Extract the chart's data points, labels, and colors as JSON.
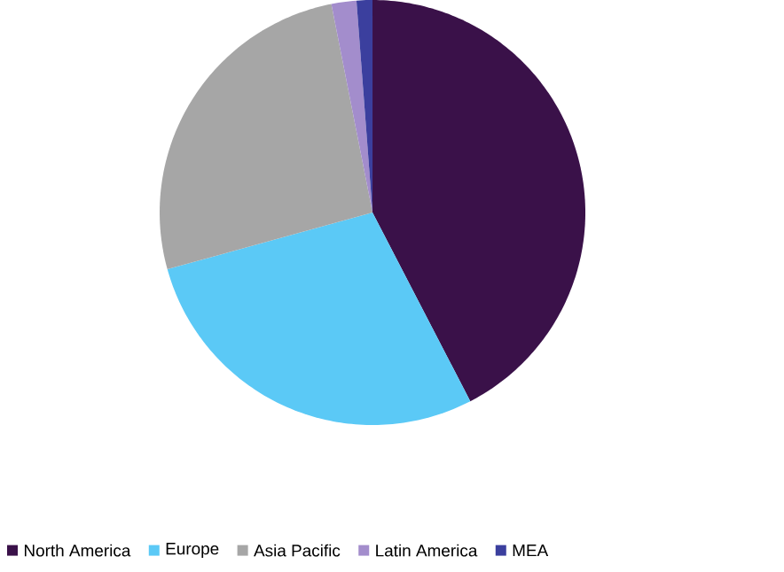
{
  "chart_data": {
    "type": "pie",
    "categories": [
      "North America",
      "Europe",
      "Asia Pacific",
      "Latin America",
      "MEA"
    ],
    "values": [
      42.4,
      28.3,
      26.2,
      1.9,
      1.2
    ],
    "colors": [
      "#3a1149",
      "#5bc9f6",
      "#a6a6a6",
      "#a38dcc",
      "#3b3f9e"
    ],
    "legend": "bottom"
  }
}
